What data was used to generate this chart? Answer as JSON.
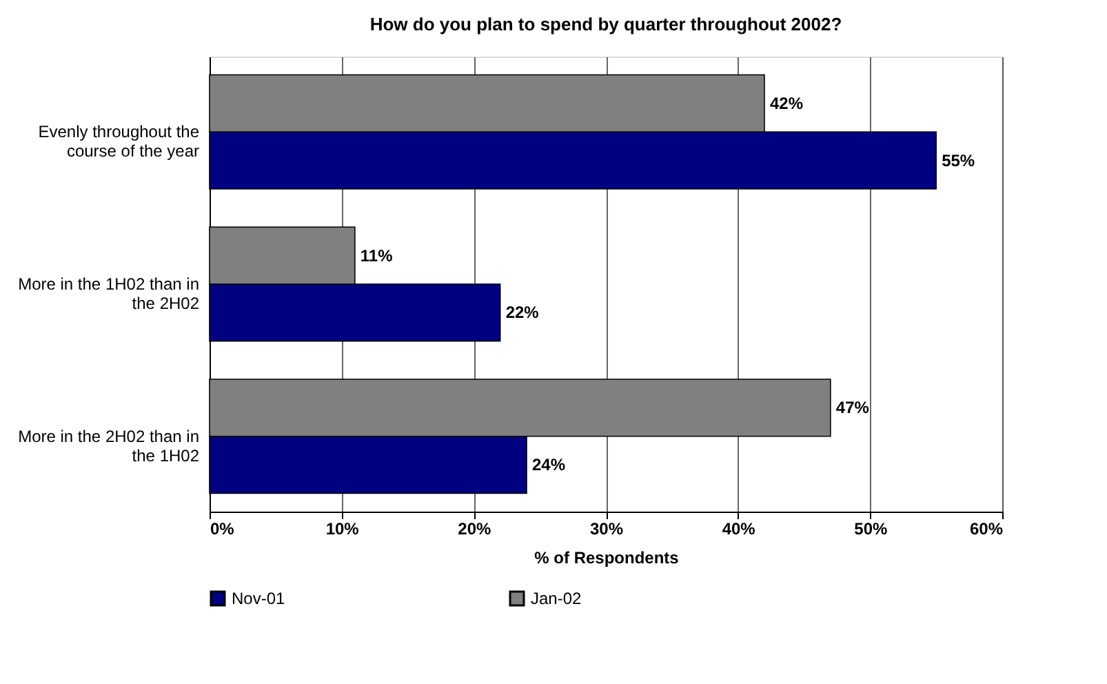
{
  "chart_data": {
    "type": "bar",
    "orientation": "horizontal",
    "title": "How do you plan to spend by quarter throughout 2002?",
    "xlabel": "% of Respondents",
    "categories": [
      "Evenly throughout the course of the year",
      "More in the 1H02 than in the 2H02",
      "More in the 2H02 than in the 1H02"
    ],
    "series": [
      {
        "name": "Nov-01",
        "color": "#000080",
        "values": [
          55,
          22,
          24
        ],
        "value_labels": [
          "55%",
          "22%",
          "24%"
        ]
      },
      {
        "name": "Jan-02",
        "color": "#808080",
        "values": [
          42,
          11,
          47
        ],
        "value_labels": [
          "42%",
          "11%",
          "47%"
        ]
      }
    ],
    "xlim": [
      0,
      60
    ],
    "xticks": [
      {
        "value": 0,
        "label": "0%"
      },
      {
        "value": 10,
        "label": "10%"
      },
      {
        "value": 20,
        "label": "20%"
      },
      {
        "value": 30,
        "label": "30%"
      },
      {
        "value": 40,
        "label": "40%"
      },
      {
        "value": 50,
        "label": "50%"
      },
      {
        "value": 60,
        "label": "60%"
      }
    ],
    "grid": "x",
    "legend": "bottom"
  }
}
